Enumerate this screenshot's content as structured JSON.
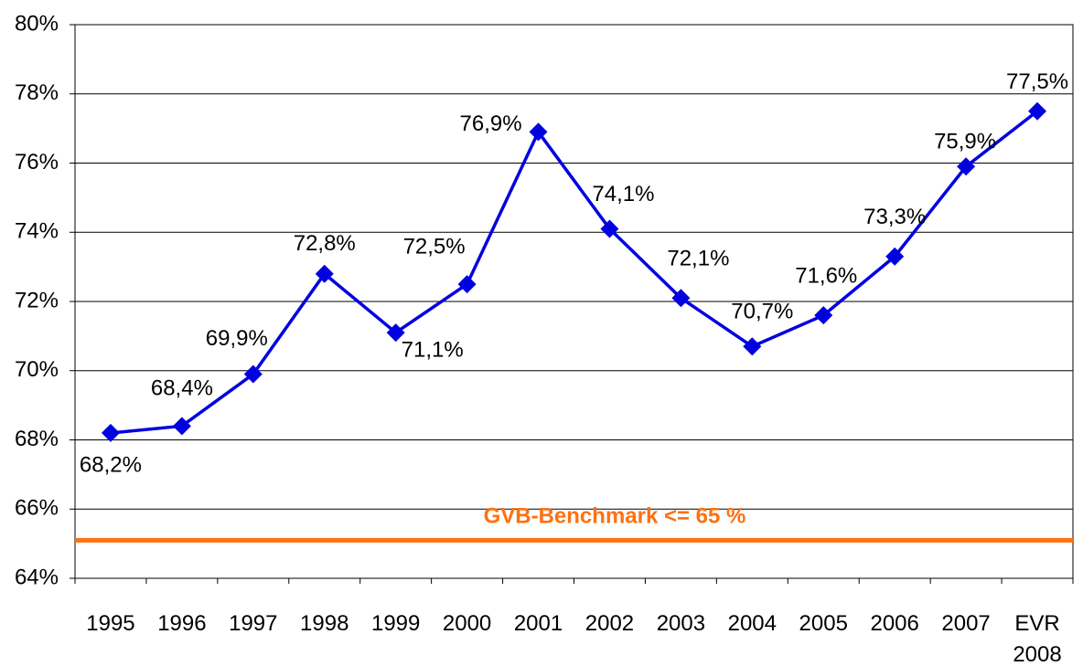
{
  "chart_data": {
    "type": "line",
    "categories": [
      "1995",
      "1996",
      "1997",
      "1998",
      "1999",
      "2000",
      "2001",
      "2002",
      "2003",
      "2004",
      "2005",
      "2006",
      "2007",
      "EVR 2008"
    ],
    "series": [
      {
        "color": "#0000e0",
        "values": [
          68.2,
          68.4,
          69.9,
          72.8,
          71.1,
          72.5,
          76.9,
          74.1,
          72.1,
          70.7,
          71.6,
          73.3,
          75.9,
          77.5
        ],
        "value_labels": [
          "68,2%",
          "68,4%",
          "69,9%",
          "72,8%",
          "71,1%",
          "72,5%",
          "76,9%",
          "74,1%",
          "72,1%",
          "70,7%",
          "71,6%",
          "73,3%",
          "75,9%",
          "77,5%"
        ]
      }
    ],
    "ylim": [
      64,
      80
    ],
    "yticks": [
      {
        "value": 64,
        "label": "64%"
      },
      {
        "value": 66,
        "label": "66%"
      },
      {
        "value": 68,
        "label": "68%"
      },
      {
        "value": 70,
        "label": "70%"
      },
      {
        "value": 72,
        "label": "72%"
      },
      {
        "value": 74,
        "label": "74%"
      },
      {
        "value": 76,
        "label": "76%"
      },
      {
        "value": 78,
        "label": "78%"
      },
      {
        "value": 80,
        "label": "80%"
      }
    ],
    "grid": true,
    "benchmark": {
      "value": 65.1,
      "color": "#ff7010",
      "label": "GVB-Benchmark <= 65 %"
    }
  }
}
